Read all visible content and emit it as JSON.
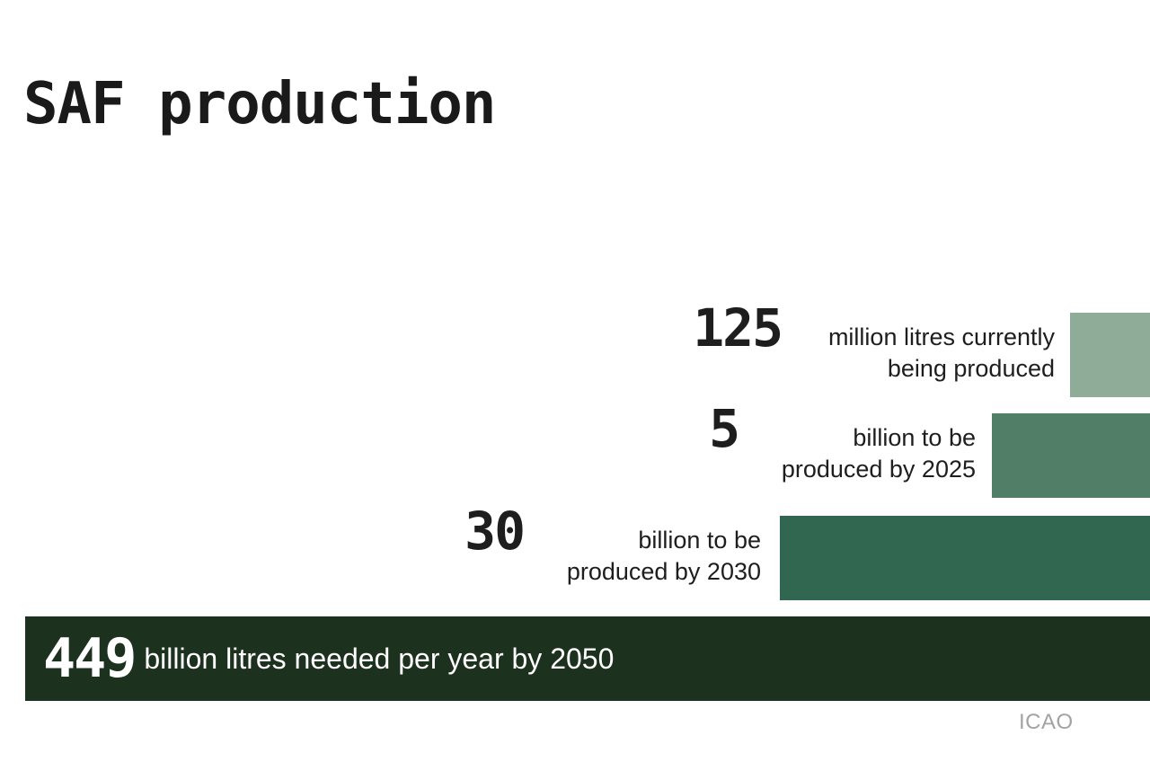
{
  "title": "SAF production",
  "source": "ICAO",
  "chart_data": {
    "type": "bar",
    "orientation": "horizontal",
    "title": "SAF production",
    "xlabel": "",
    "ylabel": "",
    "grid": false,
    "bars": [
      {
        "value_text": "125",
        "description": "million litres currently being produced",
        "value_litres": 125000000,
        "color": "#8fac99"
      },
      {
        "value_text": "5",
        "description": "billion to be produced by 2025",
        "value_litres": 5000000000,
        "color": "#517e66"
      },
      {
        "value_text": "30",
        "description": "billion to be produced by 2030",
        "value_litres": 30000000000,
        "color": "#316750"
      },
      {
        "value_text": "449",
        "description": "billion litres needed per year by 2050",
        "value_litres": 449000000000,
        "color": "#1d321e"
      }
    ]
  }
}
